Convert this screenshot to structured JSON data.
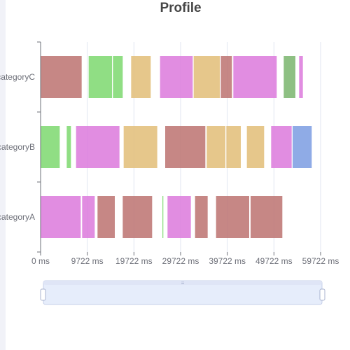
{
  "chart_data": {
    "type": "bar",
    "subtype": "gantt",
    "title": "Profile",
    "categories": [
      "categoryA",
      "categoryB",
      "categoryC"
    ],
    "x_ticks": [
      "0 ms",
      "9722 ms",
      "19722 ms",
      "29722 ms",
      "39722 ms",
      "49722 ms",
      "59722 ms"
    ],
    "xlim": [
      0,
      60000
    ],
    "grid": true,
    "colors": {
      "brown": "#bc7270",
      "green": "#7cd86e",
      "tan": "#e2bd77",
      "orchid": "#dc79dc",
      "olive": "#7ab56d",
      "blue": "#7b9ce2",
      "zoom_fill": "#e6edfb",
      "zoom_border": "#c6cfe8"
    },
    "tasks": [
      {
        "category": "categoryC",
        "start": 0,
        "end": 8800,
        "color": "brown"
      },
      {
        "category": "categoryC",
        "start": 10300,
        "end": 15300,
        "color": "green"
      },
      {
        "category": "categoryC",
        "start": 15500,
        "end": 17600,
        "color": "green"
      },
      {
        "category": "categoryC",
        "start": 19400,
        "end": 23600,
        "color": "tan"
      },
      {
        "category": "categoryC",
        "start": 25600,
        "end": 32600,
        "color": "orchid"
      },
      {
        "category": "categoryC",
        "start": 32800,
        "end": 38400,
        "color": "tan"
      },
      {
        "category": "categoryC",
        "start": 38600,
        "end": 41000,
        "color": "brown"
      },
      {
        "category": "categoryC",
        "start": 41300,
        "end": 50600,
        "color": "orchid"
      },
      {
        "category": "categoryC",
        "start": 52100,
        "end": 54600,
        "color": "olive"
      },
      {
        "category": "categoryC",
        "start": 55400,
        "end": 56200,
        "color": "orchid"
      },
      {
        "category": "categoryB",
        "start": 0,
        "end": 4100,
        "color": "green"
      },
      {
        "category": "categoryB",
        "start": 5600,
        "end": 6500,
        "color": "green"
      },
      {
        "category": "categoryB",
        "start": 7600,
        "end": 16900,
        "color": "orchid"
      },
      {
        "category": "categoryB",
        "start": 17800,
        "end": 25000,
        "color": "tan"
      },
      {
        "category": "categoryB",
        "start": 26700,
        "end": 35300,
        "color": "brown"
      },
      {
        "category": "categoryB",
        "start": 35600,
        "end": 39600,
        "color": "tan"
      },
      {
        "category": "categoryB",
        "start": 39800,
        "end": 42900,
        "color": "tan"
      },
      {
        "category": "categoryB",
        "start": 44200,
        "end": 47900,
        "color": "tan"
      },
      {
        "category": "categoryB",
        "start": 49400,
        "end": 53800,
        "color": "orchid"
      },
      {
        "category": "categoryB",
        "start": 54000,
        "end": 58100,
        "color": "blue"
      },
      {
        "category": "categoryA",
        "start": 0,
        "end": 8600,
        "color": "orchid"
      },
      {
        "category": "categoryA",
        "start": 8900,
        "end": 11600,
        "color": "orchid"
      },
      {
        "category": "categoryA",
        "start": 12200,
        "end": 15900,
        "color": "brown"
      },
      {
        "category": "categoryA",
        "start": 17600,
        "end": 23900,
        "color": "brown"
      },
      {
        "category": "categoryA",
        "start": 26100,
        "end": 26300,
        "color": "green"
      },
      {
        "category": "categoryA",
        "start": 27200,
        "end": 32200,
        "color": "orchid"
      },
      {
        "category": "categoryA",
        "start": 33100,
        "end": 35800,
        "color": "brown"
      },
      {
        "category": "categoryA",
        "start": 37600,
        "end": 44700,
        "color": "brown"
      },
      {
        "category": "categoryA",
        "start": 45000,
        "end": 51800,
        "color": "brown"
      }
    ]
  },
  "datazoom": {
    "handle_grip": "≡",
    "range_start_percent": 0,
    "range_end_percent": 100
  }
}
